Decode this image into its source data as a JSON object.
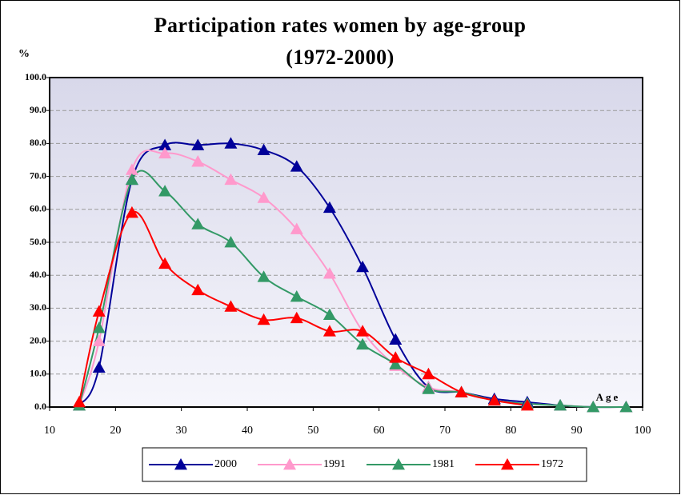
{
  "chart_data": {
    "type": "line",
    "title": "Participation rates women by age-group",
    "subtitle": "(1972-2000)",
    "ylabel": "%",
    "xlabel": "Age",
    "x": [
      14.5,
      17.5,
      22.5,
      27.5,
      32.5,
      37.5,
      42.5,
      47.5,
      52.5,
      57.5,
      62.5,
      67.5,
      72.5,
      77.5,
      82.5,
      87.5,
      92.5,
      97.5
    ],
    "series": [
      {
        "name": "2000",
        "color": "#000099",
        "values": [
          0.5,
          12,
          69,
          79.5,
          79.5,
          80,
          78,
          73,
          60.5,
          42.5,
          20.5,
          6,
          4.5,
          2.5,
          1.5,
          0.5,
          0,
          0
        ]
      },
      {
        "name": "1991",
        "color": "#ff99cc",
        "values": [
          0.5,
          20,
          72,
          77,
          74.5,
          69,
          63.5,
          54,
          40.5,
          23,
          12.5,
          6,
          4.5,
          2,
          1,
          0.5,
          0,
          0
        ]
      },
      {
        "name": "1981",
        "color": "#339966",
        "values": [
          0.5,
          24,
          69,
          65.5,
          55.5,
          50,
          39.5,
          33.5,
          28,
          19,
          13,
          5.5,
          4.5,
          2,
          1,
          0.5,
          0,
          0
        ]
      },
      {
        "name": "1972",
        "color": "#ff0000",
        "values": [
          1.5,
          29,
          59,
          43.5,
          35.5,
          30.5,
          26.5,
          27,
          23,
          23,
          15,
          10,
          4.5,
          2,
          0.5,
          null,
          null,
          null
        ]
      }
    ],
    "xlim": [
      10,
      100
    ],
    "xticks": [
      10,
      20,
      30,
      40,
      50,
      60,
      70,
      80,
      90,
      100
    ],
    "ylim": [
      0,
      100
    ],
    "yticks": [
      {
        "value": 0,
        "label": "0.0"
      },
      {
        "value": 10,
        "label": "10.0"
      },
      {
        "value": 20,
        "label": "20.0"
      },
      {
        "value": 30,
        "label": "30.0"
      },
      {
        "value": 40,
        "label": "40.0"
      },
      {
        "value": 50,
        "label": "50.0"
      },
      {
        "value": 60,
        "label": "60.0"
      },
      {
        "value": 70,
        "label": "70.0"
      },
      {
        "value": 80,
        "label": "80.0"
      },
      {
        "value": 90,
        "label": "90.0"
      },
      {
        "value": 100,
        "label": "100.0"
      }
    ],
    "grid": true,
    "legend": "bottom"
  }
}
